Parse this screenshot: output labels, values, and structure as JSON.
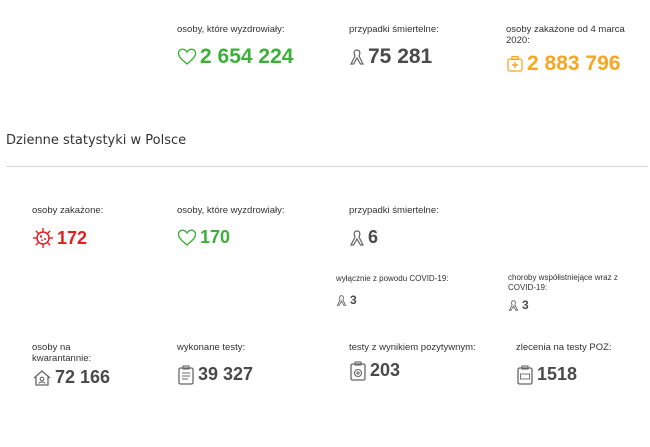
{
  "totals": {
    "recovered": {
      "label": "osoby, które wyzdrowiały:",
      "value": "2 654 224",
      "icon": "heart-icon"
    },
    "deaths": {
      "label": "przypadki śmiertelne:",
      "value": "75 281",
      "icon": "ribbon-icon"
    },
    "infected": {
      "label": "osoby zakażone od 4 marca 2020:",
      "value": "2 883 796",
      "icon": "medkit-icon"
    }
  },
  "section_title": "Dzienne statystyki w Polsce",
  "daily": {
    "infected": {
      "label": "osoby zakażone:",
      "value": "172",
      "icon": "virus-icon"
    },
    "recovered": {
      "label": "osoby, które wyzdrowiały:",
      "value": "170",
      "icon": "heart-icon"
    },
    "deaths": {
      "label": "przypadki śmiertelne:",
      "value": "6",
      "icon": "ribbon-icon"
    },
    "deaths_covid_only": {
      "label": "wyłącznie z powodu COVID-19:",
      "value": "3",
      "icon": "ribbon-icon"
    },
    "deaths_comorbid": {
      "label": "choroby współistniejące wraz z COVID-19:",
      "value": "3",
      "icon": "ribbon-icon"
    },
    "quarantine": {
      "label": "osoby na kwarantannie:",
      "value": "72 166",
      "icon": "house-icon"
    },
    "tests": {
      "label": "wykonane testy:",
      "value": "39 327",
      "icon": "clipboard-icon"
    },
    "positive_tests": {
      "label": "testy z wynikiem pozytywnym:",
      "value": "203",
      "icon": "clipboard-plus-icon"
    },
    "poz_orders": {
      "label": "zlecenia na testy POZ:",
      "value": "1518",
      "icon": "clipboard-poz-icon"
    }
  },
  "colors": {
    "green": "#3db03a",
    "red": "#e02020",
    "orange": "#f5a623",
    "grey": "#4a4a4a"
  }
}
